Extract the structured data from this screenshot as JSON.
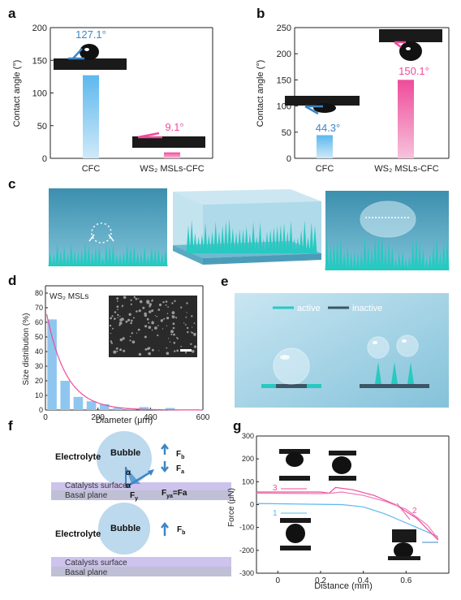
{
  "panel_letters": {
    "a": "a",
    "b": "b",
    "c": "c",
    "d": "d",
    "e": "e",
    "f": "f",
    "g": "g"
  },
  "colors": {
    "blue": "#5cb8ee",
    "pink": "#ee4c9a",
    "teal": "#27c9c0",
    "lightblue": "#cfe6f6",
    "axis": "#222222"
  },
  "panel_a": {
    "ylabel": "Contact angle (°)",
    "categories": [
      "CFC",
      "WS₂ MSLs-CFC"
    ],
    "annotations": [
      "127.1°",
      "9.1°"
    ]
  },
  "panel_b": {
    "ylabel": "Contact angle (°)",
    "categories": [
      "CFC",
      "WS₂ MSLs-CFC"
    ],
    "annotations": [
      "44.3°",
      "150.1°"
    ]
  },
  "panel_d": {
    "xlabel": "Diameter (μm)",
    "ylabel": "Size distribution (%)",
    "inset_label": "WS₂ MSLs"
  },
  "panel_e": {
    "legend": [
      "active",
      "inactive"
    ]
  },
  "panel_f": {
    "top": {
      "electrolyte": "Electrolyte",
      "bubble": "Bubble",
      "fb": "F",
      "fb_sub": "b",
      "fa": "F",
      "fa_sub": "a",
      "fy": "F",
      "fy_sub": "y",
      "fyfa": "F",
      "fyfa_sub": "ya",
      "fyfa_rest": "=Fa",
      "alpha": "α",
      "surface": "Catalysts surface",
      "basal": "Basal plane"
    },
    "bottom": {
      "electrolyte": "Electrolyte",
      "bubble": "Bubble",
      "fb": "F",
      "fb_sub": "b",
      "surface": "Catalysts surface",
      "basal": "Basal plane"
    }
  },
  "panel_g": {
    "xlabel": "Distance (mm)",
    "ylabel": "Force (μN)",
    "curve_labels": [
      "1",
      "2",
      "3"
    ]
  },
  "chart_data": [
    {
      "type": "bar",
      "panel": "a",
      "categories": [
        "CFC",
        "WS₂ MSLs-CFC"
      ],
      "values": [
        127.1,
        9.1
      ],
      "ylabel": "Contact angle (°)",
      "ylim": [
        0,
        200
      ],
      "yticks": [
        0,
        50,
        100,
        150,
        200
      ]
    },
    {
      "type": "bar",
      "panel": "b",
      "categories": [
        "CFC",
        "WS₂ MSLs-CFC"
      ],
      "values": [
        44.3,
        150.1
      ],
      "ylabel": "Contact angle (°)",
      "ylim": [
        0,
        250
      ],
      "yticks": [
        0,
        50,
        100,
        150,
        200,
        250
      ]
    },
    {
      "type": "bar",
      "panel": "d",
      "x": [
        25,
        75,
        125,
        175,
        225,
        275,
        325,
        375,
        425,
        475
      ],
      "values": [
        62,
        20,
        9,
        6,
        4,
        1.5,
        1,
        2,
        0.6,
        1.4
      ],
      "fit_curve": true,
      "xlabel": "Diameter (μm)",
      "ylabel": "Size distribution (%)",
      "xlim": [
        0,
        600
      ],
      "ylim": [
        0,
        85
      ],
      "xticks": [
        0,
        200,
        400,
        600
      ],
      "yticks": [
        0,
        10,
        20,
        30,
        40,
        50,
        60,
        70,
        80
      ]
    },
    {
      "type": "line",
      "panel": "g",
      "xlabel": "Distance (mm)",
      "ylabel": "Force (μN)",
      "xlim": [
        -0.1,
        0.8
      ],
      "ylim": [
        -300,
        300
      ],
      "xticks": [
        0,
        0.2,
        0.4,
        0.6
      ],
      "yticks": [
        -300,
        -200,
        -100,
        0,
        100,
        200,
        300
      ],
      "series": [
        {
          "name": "1",
          "x": [
            -0.1,
            0.3,
            0.4,
            0.5,
            0.6,
            0.7,
            0.75
          ],
          "y": [
            5,
            0,
            -10,
            -40,
            -80,
            -120,
            -140
          ]
        },
        {
          "name": "2",
          "x": [
            -0.1,
            0.2,
            0.24,
            0.27,
            0.35,
            0.45,
            0.55,
            0.65,
            0.75
          ],
          "y": [
            55,
            55,
            50,
            75,
            65,
            40,
            0,
            -60,
            -155
          ]
        },
        {
          "name": "3",
          "x": [
            -0.1,
            0.2,
            0.25,
            0.3,
            0.4,
            0.5,
            0.6,
            0.7,
            0.75
          ],
          "y": [
            50,
            48,
            50,
            55,
            40,
            15,
            -20,
            -90,
            -150
          ]
        }
      ]
    }
  ]
}
